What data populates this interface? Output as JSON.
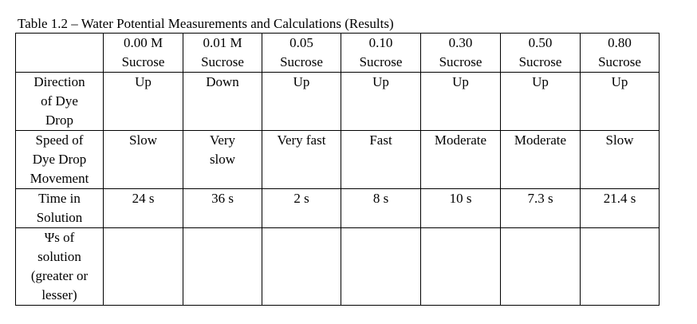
{
  "table": {
    "caption": "Table 1.2 – Water Potential Measurements and Calculations (Results)",
    "header": [
      [
        "0.00 M",
        "Sucrose"
      ],
      [
        "0.01 M",
        "Sucrose"
      ],
      [
        "0.05",
        "Sucrose"
      ],
      [
        "0.10",
        "Sucrose"
      ],
      [
        "0.30",
        "Sucrose"
      ],
      [
        "0.50",
        "Sucrose"
      ],
      [
        "0.80",
        "Sucrose"
      ]
    ],
    "rows": [
      {
        "label": [
          "Direction",
          "of Dye",
          "Drop"
        ],
        "cells": [
          [
            "Up"
          ],
          [
            "Down"
          ],
          [
            "Up"
          ],
          [
            "Up"
          ],
          [
            "Up"
          ],
          [
            "Up"
          ],
          [
            "Up"
          ]
        ]
      },
      {
        "label": [
          "Speed of",
          "Dye Drop",
          "Movement"
        ],
        "cells": [
          [
            "Slow"
          ],
          [
            "Very",
            "slow"
          ],
          [
            "Very fast"
          ],
          [
            "Fast"
          ],
          [
            "Moderate"
          ],
          [
            "Moderate"
          ],
          [
            "Slow"
          ]
        ]
      },
      {
        "label": [
          "Time in",
          "Solution"
        ],
        "cells": [
          [
            "24 s"
          ],
          [
            "36 s"
          ],
          [
            "2 s"
          ],
          [
            "8 s"
          ],
          [
            "10 s"
          ],
          [
            "7.3 s"
          ],
          [
            "21.4 s"
          ]
        ]
      },
      {
        "label": [
          "Ψs of",
          "solution",
          "(greater or",
          "lesser)"
        ]
      }
    ]
  }
}
